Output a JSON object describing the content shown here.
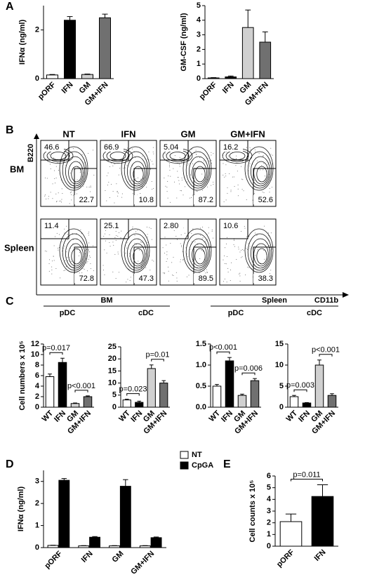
{
  "panel_labels": [
    "A",
    "B",
    "C",
    "D",
    "E"
  ],
  "chart_data": [
    {
      "type": "bar",
      "ylabel": "IFNα (ng/ml)",
      "categories": [
        "pORF",
        "IFN",
        "GM",
        "GM+IFN"
      ],
      "values": [
        0.15,
        2.4,
        0.17,
        2.5
      ],
      "errors": [
        0.02,
        0.15,
        0.02,
        0.15
      ],
      "colors": [
        "#ffffff",
        "#000000",
        "#d0d0d0",
        "#707070"
      ],
      "ylim": [
        0,
        3
      ],
      "yticks": [
        0,
        2
      ]
    },
    {
      "type": "bar",
      "ylabel": "GM-CSF (ng/ml)",
      "categories": [
        "pORF",
        "IFN",
        "GM",
        "GM+IFN"
      ],
      "values": [
        0.05,
        0.12,
        3.5,
        2.5
      ],
      "errors": [
        0.02,
        0.06,
        1.2,
        0.7
      ],
      "colors": [
        "#ffffff",
        "#000000",
        "#d0d0d0",
        "#707070"
      ],
      "ylim": [
        0,
        5
      ],
      "yticks": [
        0,
        1,
        2,
        3,
        4,
        5
      ]
    },
    {
      "type": "bar",
      "ylabel": "Cell numbers x 10⁵",
      "categories": [
        "WT",
        "IFN",
        "GM",
        "GM+IFN"
      ],
      "values": [
        5.8,
        8.5,
        0.7,
        2.0
      ],
      "errors": [
        0.5,
        0.8,
        0.1,
        0.15
      ],
      "colors": [
        "#ffffff",
        "#000000",
        "#d0d0d0",
        "#707070"
      ],
      "ylim": [
        0,
        12
      ],
      "yticks": [
        0,
        2,
        4,
        6,
        8,
        10,
        12
      ],
      "annotations": [
        {
          "text": "p=0.017",
          "from": 0,
          "to": 1
        },
        {
          "text": "p<0.001",
          "from": 2,
          "to": 3
        }
      ]
    },
    {
      "type": "bar",
      "categories": [
        "WT",
        "IFN",
        "GM",
        "GM+IFN"
      ],
      "values": [
        3.0,
        2.0,
        16,
        10
      ],
      "errors": [
        0.3,
        0.5,
        1.5,
        1.0
      ],
      "colors": [
        "#ffffff",
        "#000000",
        "#d0d0d0",
        "#707070"
      ],
      "ylim": [
        0,
        25
      ],
      "yticks": [
        0,
        5,
        10,
        15,
        20,
        25
      ],
      "annotations": [
        {
          "text": "p=0.023",
          "from": 0,
          "to": 1
        },
        {
          "text": "p=0.01",
          "from": 2,
          "to": 3
        }
      ]
    },
    {
      "type": "bar",
      "categories": [
        "WT",
        "IFN",
        "GM",
        "GM+IFN"
      ],
      "values": [
        0.5,
        1.1,
        0.28,
        0.63
      ],
      "errors": [
        0.04,
        0.08,
        0.03,
        0.05
      ],
      "colors": [
        "#ffffff",
        "#000000",
        "#d0d0d0",
        "#707070"
      ],
      "ylim": [
        0,
        1.5
      ],
      "yticks": [
        {
          "value": 0,
          "label": "0.0"
        },
        0.5,
        {
          "value": 1,
          "label": "1.0"
        },
        1.5
      ],
      "annotations": [
        {
          "text": "p<0.001",
          "from": 0,
          "to": 1
        },
        {
          "text": "p=0.006",
          "from": 2,
          "to": 3
        }
      ]
    },
    {
      "type": "bar",
      "categories": [
        "WT",
        "IFN",
        "GM",
        "GM+IFN"
      ],
      "values": [
        2.5,
        1.0,
        10,
        2.8
      ],
      "errors": [
        0.3,
        0.1,
        1.2,
        0.4
      ],
      "colors": [
        "#ffffff",
        "#000000",
        "#d0d0d0",
        "#707070"
      ],
      "ylim": [
        0,
        15
      ],
      "yticks": [
        0,
        5,
        10,
        15
      ],
      "annotations": [
        {
          "text": "p=0.003",
          "from": 0,
          "to": 1
        },
        {
          "text": "p<0.001",
          "from": 2,
          "to": 3
        }
      ]
    },
    {
      "type": "grouped-bar",
      "ylabel": "IFNα (ng/ml)",
      "categories": [
        "pORF",
        "IFN",
        "GM",
        "GM+IFN"
      ],
      "series": [
        {
          "name": "NT",
          "color": "#ffffff",
          "values": [
            0.1,
            0.08,
            0.08,
            0.08
          ],
          "errors": [
            0.01,
            0.01,
            0.01,
            0.01
          ]
        },
        {
          "name": "CpGA",
          "color": "#000000",
          "values": [
            3.05,
            0.47,
            2.78,
            0.45
          ],
          "errors": [
            0.08,
            0.03,
            0.3,
            0.03
          ]
        }
      ],
      "ylim": [
        0,
        3.5
      ],
      "yticks": [
        0,
        1,
        2,
        3
      ],
      "legend": "top-right"
    },
    {
      "type": "bar",
      "ylabel": "Cell counts x 10⁵",
      "categories": [
        "pORF",
        "IFN"
      ],
      "values": [
        2.1,
        4.25
      ],
      "errors": [
        0.65,
        1.0
      ],
      "colors": [
        "#ffffff",
        "#000000"
      ],
      "ylim": [
        0,
        6
      ],
      "yticks": [
        0,
        1,
        2,
        3,
        4,
        5,
        6
      ],
      "annotations": [
        {
          "text": "p=0.011",
          "from": 0,
          "to": 1
        }
      ]
    }
  ],
  "panel_c_groups": [
    {
      "label": "BM",
      "subs": [
        "pDC",
        "cDC"
      ]
    },
    {
      "label": "Spleen",
      "subs": [
        "pDC",
        "cDC"
      ]
    }
  ],
  "flow": {
    "columns": [
      "NT",
      "IFN",
      "GM",
      "GM+IFN"
    ],
    "rows": [
      {
        "label": "BM",
        "upper": [
          "46.6",
          "66.9",
          "5.04",
          "16.2"
        ],
        "lower": [
          "22.7",
          "10.8",
          "87.2",
          "52.6"
        ]
      },
      {
        "label": "Spleen",
        "upper": [
          "11.4",
          "25.1",
          "2.80",
          "10.6"
        ],
        "lower": [
          "72.8",
          "47.3",
          "89.5",
          "38.3"
        ]
      }
    ],
    "y_axis": "B220",
    "x_axis": "CD11b"
  }
}
